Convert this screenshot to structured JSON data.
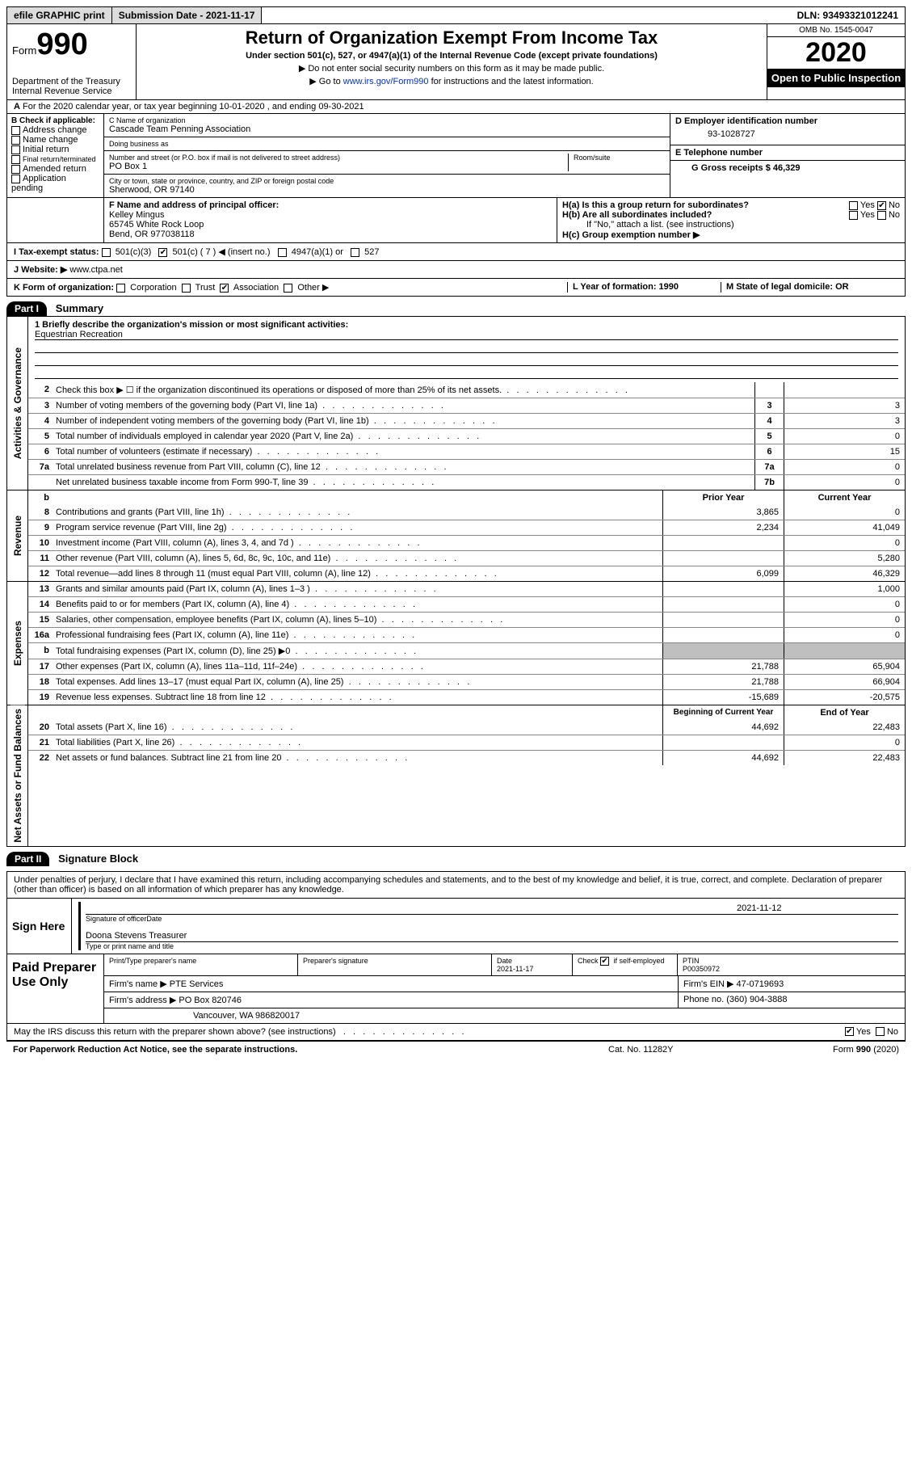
{
  "topbar": {
    "efile": "efile GRAPHIC print",
    "sub_label": "Submission Date - 2021-11-17",
    "dln": "DLN: 93493321012241"
  },
  "header": {
    "form_label": "Form",
    "form_no": "990",
    "dept1": "Department of the Treasury",
    "dept2": "Internal Revenue Service",
    "title": "Return of Organization Exempt From Income Tax",
    "subtitle": "Under section 501(c), 527, or 4947(a)(1) of the Internal Revenue Code (except private foundations)",
    "note1": "Do not enter social security numbers on this form as it may be made public.",
    "note2_pre": "Go to ",
    "note2_link": "www.irs.gov/Form990",
    "note2_post": " for instructions and the latest information.",
    "omb": "OMB No. 1545-0047",
    "year": "2020",
    "open": "Open to Public Inspection"
  },
  "row_a": "For the 2020 calendar year, or tax year beginning 10-01-2020    , and ending 09-30-2021",
  "col_b": {
    "head": "B Check if applicable:",
    "items": [
      "Address change",
      "Name change",
      "Initial return",
      "Final return/terminated",
      "Amended return",
      "Application pending"
    ]
  },
  "col_c": {
    "name_lbl": "C Name of organization",
    "name": "Cascade Team Penning Association",
    "dba_lbl": "Doing business as",
    "dba": "",
    "street_lbl": "Number and street (or P.O. box if mail is not delivered to street address)",
    "room_lbl": "Room/suite",
    "street": "PO Box 1",
    "city_lbl": "City or town, state or province, country, and ZIP or foreign postal code",
    "city": "Sherwood, OR   97140"
  },
  "col_d": {
    "ein_lbl": "D Employer identification number",
    "ein": "93-1028727",
    "tel_lbl": "E Telephone number",
    "tel": "",
    "gross_lbl": "G Gross receipts $ 46,329"
  },
  "row_f": {
    "lbl": "F  Name and address of principal officer:",
    "name": "Kelley Mingus",
    "addr1": "65745 White Rock Loop",
    "addr2": "Bend, OR   977038118",
    "h_a": "H(a)  Is this a group return for subordinates?",
    "h_b": "H(b)  Are all subordinates included?",
    "h_b_note": "If \"No,\" attach a list. (see instructions)",
    "h_c": "H(c)  Group exemption number ▶"
  },
  "row_i": {
    "lbl": "I   Tax-exempt status:",
    "opts": [
      "501(c)(3)",
      "501(c) ( 7 ) ◀ (insert no.)",
      "4947(a)(1) or",
      "527"
    ]
  },
  "row_j": {
    "lbl": "J   Website: ▶",
    "val": "  www.ctpa.net"
  },
  "row_k": {
    "lbl": "K Form of organization:",
    "opts": [
      "Corporation",
      "Trust",
      "Association",
      "Other ▶"
    ],
    "year_lbl": "L Year of formation: 1990",
    "state_lbl": "M State of legal domicile: OR"
  },
  "part1": {
    "hdr": "Part I",
    "title": "Summary"
  },
  "mission": {
    "lbl": "1  Briefly describe the organization's mission or most significant activities:",
    "text": "Equestrian Recreation"
  },
  "gov_lines": [
    {
      "n": "2",
      "t": "Check this box ▶ ☐  if the organization discontinued its operations or disposed of more than 25% of its net assets.",
      "c": "",
      "v": ""
    },
    {
      "n": "3",
      "t": "Number of voting members of the governing body (Part VI, line 1a)",
      "c": "3",
      "v": "3"
    },
    {
      "n": "4",
      "t": "Number of independent voting members of the governing body (Part VI, line 1b)",
      "c": "4",
      "v": "3"
    },
    {
      "n": "5",
      "t": "Total number of individuals employed in calendar year 2020 (Part V, line 2a)",
      "c": "5",
      "v": "0"
    },
    {
      "n": "6",
      "t": "Total number of volunteers (estimate if necessary)",
      "c": "6",
      "v": "15"
    },
    {
      "n": "7a",
      "t": "Total unrelated business revenue from Part VIII, column (C), line 12",
      "c": "7a",
      "v": "0"
    },
    {
      "n": "",
      "t": "Net unrelated business taxable income from Form 990-T, line 39",
      "c": "7b",
      "v": "0"
    }
  ],
  "rev_hdr": {
    "prior": "Prior Year",
    "curr": "Current Year"
  },
  "rev_lines": [
    {
      "n": "8",
      "t": "Contributions and grants (Part VIII, line 1h)",
      "p": "3,865",
      "c": "0"
    },
    {
      "n": "9",
      "t": "Program service revenue (Part VIII, line 2g)",
      "p": "2,234",
      "c": "41,049"
    },
    {
      "n": "10",
      "t": "Investment income (Part VIII, column (A), lines 3, 4, and 7d )",
      "p": "",
      "c": "0"
    },
    {
      "n": "11",
      "t": "Other revenue (Part VIII, column (A), lines 5, 6d, 8c, 9c, 10c, and 11e)",
      "p": "",
      "c": "5,280"
    },
    {
      "n": "12",
      "t": "Total revenue—add lines 8 through 11 (must equal Part VIII, column (A), line 12)",
      "p": "6,099",
      "c": "46,329"
    }
  ],
  "exp_lines": [
    {
      "n": "13",
      "t": "Grants and similar amounts paid (Part IX, column (A), lines 1–3 )",
      "p": "",
      "c": "1,000"
    },
    {
      "n": "14",
      "t": "Benefits paid to or for members (Part IX, column (A), line 4)",
      "p": "",
      "c": "0"
    },
    {
      "n": "15",
      "t": "Salaries, other compensation, employee benefits (Part IX, column (A), lines 5–10)",
      "p": "",
      "c": "0"
    },
    {
      "n": "16a",
      "t": "Professional fundraising fees (Part IX, column (A), line 11e)",
      "p": "",
      "c": "0"
    },
    {
      "n": "b",
      "t": "Total fundraising expenses (Part IX, column (D), line 25) ▶0",
      "p": "shade",
      "c": "shade"
    },
    {
      "n": "17",
      "t": "Other expenses (Part IX, column (A), lines 11a–11d, 11f–24e)",
      "p": "21,788",
      "c": "65,904"
    },
    {
      "n": "18",
      "t": "Total expenses. Add lines 13–17 (must equal Part IX, column (A), line 25)",
      "p": "21,788",
      "c": "66,904"
    },
    {
      "n": "19",
      "t": "Revenue less expenses. Subtract line 18 from line 12",
      "p": "-15,689",
      "c": "-20,575"
    }
  ],
  "na_hdr": {
    "prior": "Beginning of Current Year",
    "curr": "End of Year"
  },
  "na_lines": [
    {
      "n": "20",
      "t": "Total assets (Part X, line 16)",
      "p": "44,692",
      "c": "22,483"
    },
    {
      "n": "21",
      "t": "Total liabilities (Part X, line 26)",
      "p": "",
      "c": "0"
    },
    {
      "n": "22",
      "t": "Net assets or fund balances. Subtract line 21 from line 20",
      "p": "44,692",
      "c": "22,483"
    }
  ],
  "part2": {
    "hdr": "Part II",
    "title": "Signature Block"
  },
  "sig": {
    "decl": "Under penalties of perjury, I declare that I have examined this return, including accompanying schedules and statements, and to the best of my knowledge and belief, it is true, correct, and complete. Declaration of preparer (other than officer) is based on all information of which preparer has any knowledge.",
    "sign_here": "Sign Here",
    "sig_lbl": "Signature of officer",
    "date": "2021-11-12",
    "date_lbl": "Date",
    "name": "Doona Stevens  Treasurer",
    "name_lbl": "Type or print name and title"
  },
  "prep": {
    "lbl": "Paid Preparer Use Only",
    "r1": {
      "c1": "Print/Type preparer's name",
      "c2": "Preparer's signature",
      "c3": "Date\n2021-11-17",
      "c4": "Check ✔ if self-employed",
      "c5": "PTIN\nP00350972"
    },
    "r2": {
      "c1": "Firm's name    ▶ PTE Services",
      "c2": "Firm's EIN ▶ 47-0719693"
    },
    "r3": {
      "c1": "Firm's address ▶ PO Box 820746",
      "c2": "Phone no. (360) 904-3888"
    },
    "r3b": "Vancouver, WA   986820017"
  },
  "discuss": "May the IRS discuss this return with the preparer shown above? (see instructions)",
  "footer": {
    "l": "For Paperwork Reduction Act Notice, see the separate instructions.",
    "m": "Cat. No. 11282Y",
    "r": "Form 990 (2020)"
  },
  "vtabs": {
    "gov": "Activities & Governance",
    "rev": "Revenue",
    "exp": "Expenses",
    "na": "Net Assets or Fund Balances"
  }
}
